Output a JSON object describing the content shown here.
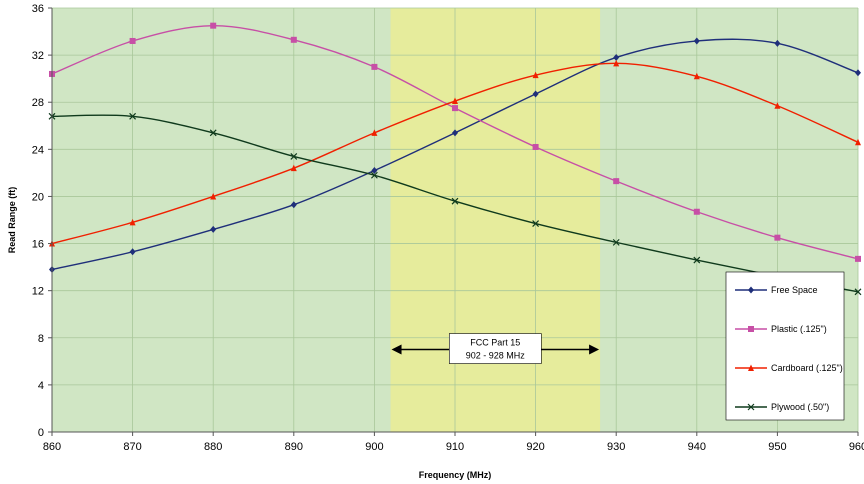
{
  "chart_data": {
    "type": "line",
    "title": "",
    "xlabel": "Frequency (MHz)",
    "ylabel": "Read Range (ft)",
    "xlim": [
      860,
      960
    ],
    "ylim": [
      0,
      36
    ],
    "x_ticks": [
      "860",
      "870",
      "880",
      "890",
      "900",
      "910",
      "920",
      "930",
      "940",
      "950",
      "960"
    ],
    "y_ticks": [
      "0",
      "4",
      "8",
      "12",
      "16",
      "20",
      "24",
      "28",
      "32",
      "36"
    ],
    "x": [
      860,
      870,
      880,
      890,
      900,
      910,
      920,
      930,
      940,
      950,
      960
    ],
    "series": [
      {
        "name": "Free Space",
        "color": "#1f2f7a",
        "marker": "diamond",
        "values": [
          13.8,
          15.3,
          17.2,
          19.3,
          22.2,
          25.4,
          28.7,
          31.8,
          33.2,
          33.0,
          30.5
        ]
      },
      {
        "name": "Plastic (.125\")",
        "color": "#c74fa6",
        "marker": "square",
        "values": [
          30.4,
          33.2,
          34.5,
          33.3,
          31.0,
          27.5,
          24.2,
          21.3,
          18.7,
          16.5,
          14.7
        ]
      },
      {
        "name": "Cardboard (.125\")",
        "color": "#f02000",
        "marker": "triangle",
        "values": [
          16.0,
          17.8,
          20.0,
          22.4,
          25.4,
          28.1,
          30.3,
          31.3,
          30.2,
          27.7,
          24.6
        ]
      },
      {
        "name": "Plywood (.50\")",
        "color": "#0f3a1c",
        "marker": "x",
        "values": [
          26.8,
          26.8,
          25.4,
          23.4,
          21.8,
          19.6,
          17.7,
          16.1,
          14.6,
          13.2,
          11.9
        ]
      }
    ],
    "band": {
      "from": 902,
      "to": 928,
      "label_line1": "FCC Part 15",
      "label_line2": "902 - 928 MHz",
      "color": "#e6ec9c"
    },
    "plot_background": "#d0e6c4",
    "grid": true,
    "legend_position": "bottom-right"
  }
}
